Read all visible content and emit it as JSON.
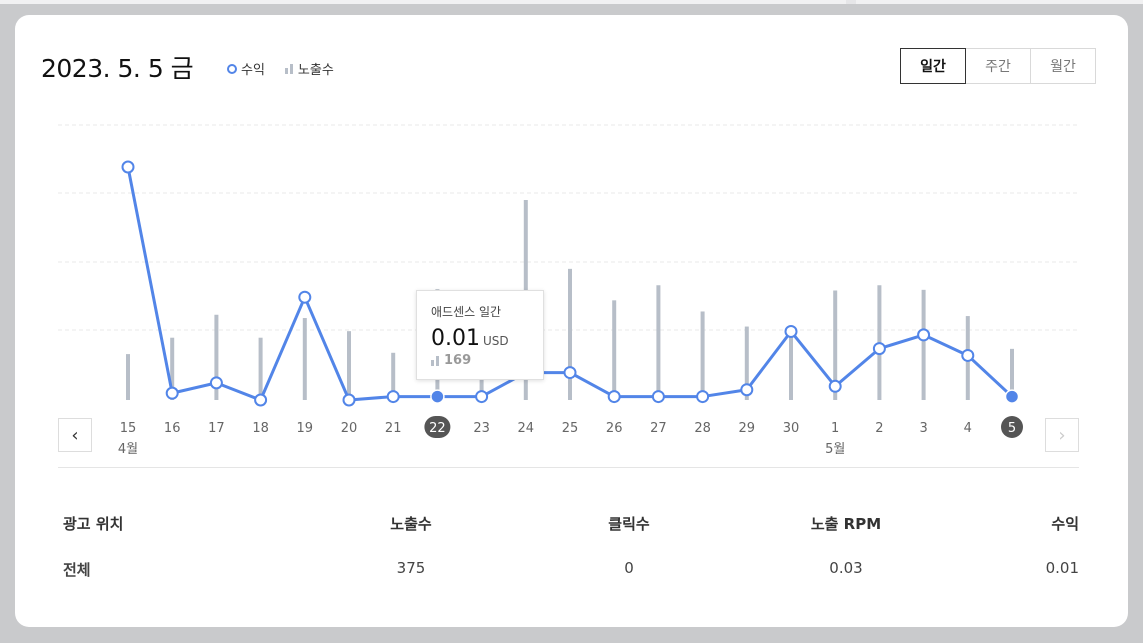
{
  "header": {
    "date": "2023. 5. 5 금",
    "legend_revenue": "수익",
    "legend_impressions": "노출수"
  },
  "period_tabs": [
    {
      "label": "일간",
      "active": true
    },
    {
      "label": "주간",
      "active": false
    },
    {
      "label": "월간",
      "active": false
    }
  ],
  "tooltip": {
    "title": "애드센스 일간",
    "value": "0.01",
    "unit": "USD",
    "impressions": "169"
  },
  "chart_data": {
    "type": "line",
    "categories": [
      "15",
      "16",
      "17",
      "18",
      "19",
      "20",
      "21",
      "22",
      "23",
      "24",
      "25",
      "26",
      "27",
      "28",
      "29",
      "30",
      "1",
      "2",
      "3",
      "4",
      "5"
    ],
    "month_labels": [
      {
        "index": 0,
        "label": "4월"
      },
      {
        "index": 16,
        "label": "5월"
      }
    ],
    "series": [
      {
        "name": "수익",
        "kind": "line",
        "color": "#5285e8",
        "values": [
          0.68,
          0.02,
          0.05,
          0.0,
          0.3,
          0.0,
          0.01,
          0.01,
          0.01,
          0.08,
          0.08,
          0.01,
          0.01,
          0.01,
          0.03,
          0.2,
          0.04,
          0.15,
          0.19,
          0.13,
          0.01
        ]
      },
      {
        "name": "노출수",
        "kind": "bar",
        "color": "#b7bec8",
        "values": [
          70,
          95,
          130,
          95,
          125,
          105,
          72,
          169,
          55,
          305,
          200,
          152,
          175,
          135,
          112,
          100,
          167,
          175,
          168,
          128,
          78
        ]
      }
    ],
    "selected_index": 7,
    "current_index": 20,
    "grid": true,
    "legend": "top-left"
  },
  "table": {
    "headers": [
      "광고 위치",
      "노출수",
      "클릭수",
      "노출 RPM",
      "수익"
    ],
    "rows": [
      [
        "전체",
        "375",
        "0",
        "0.03",
        "0.01"
      ]
    ]
  },
  "nav": {
    "prev": "‹",
    "next": "›"
  }
}
